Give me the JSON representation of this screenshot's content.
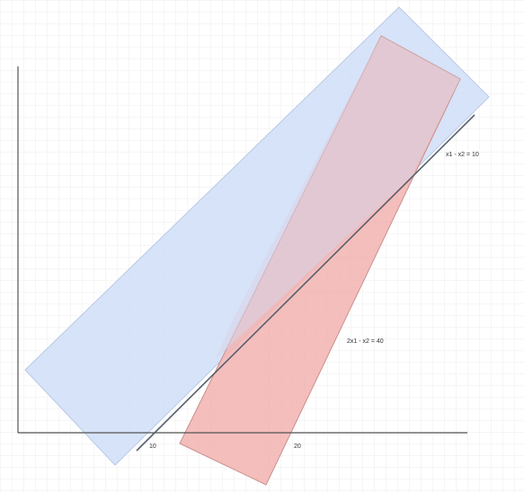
{
  "diagram": {
    "axis_ticks": {
      "x": [
        "10",
        "20"
      ]
    },
    "lines": [
      {
        "label": "x1 - x2 = 10"
      },
      {
        "label": "2x1 - x2 = 40"
      }
    ]
  },
  "colors": {
    "background": "#ffffff",
    "grid": "#e8e8e8",
    "axis": "#555555",
    "blue_region": "#d3e0f7",
    "red_region": "#f2b3b0",
    "constraint_line": "#57616f"
  }
}
